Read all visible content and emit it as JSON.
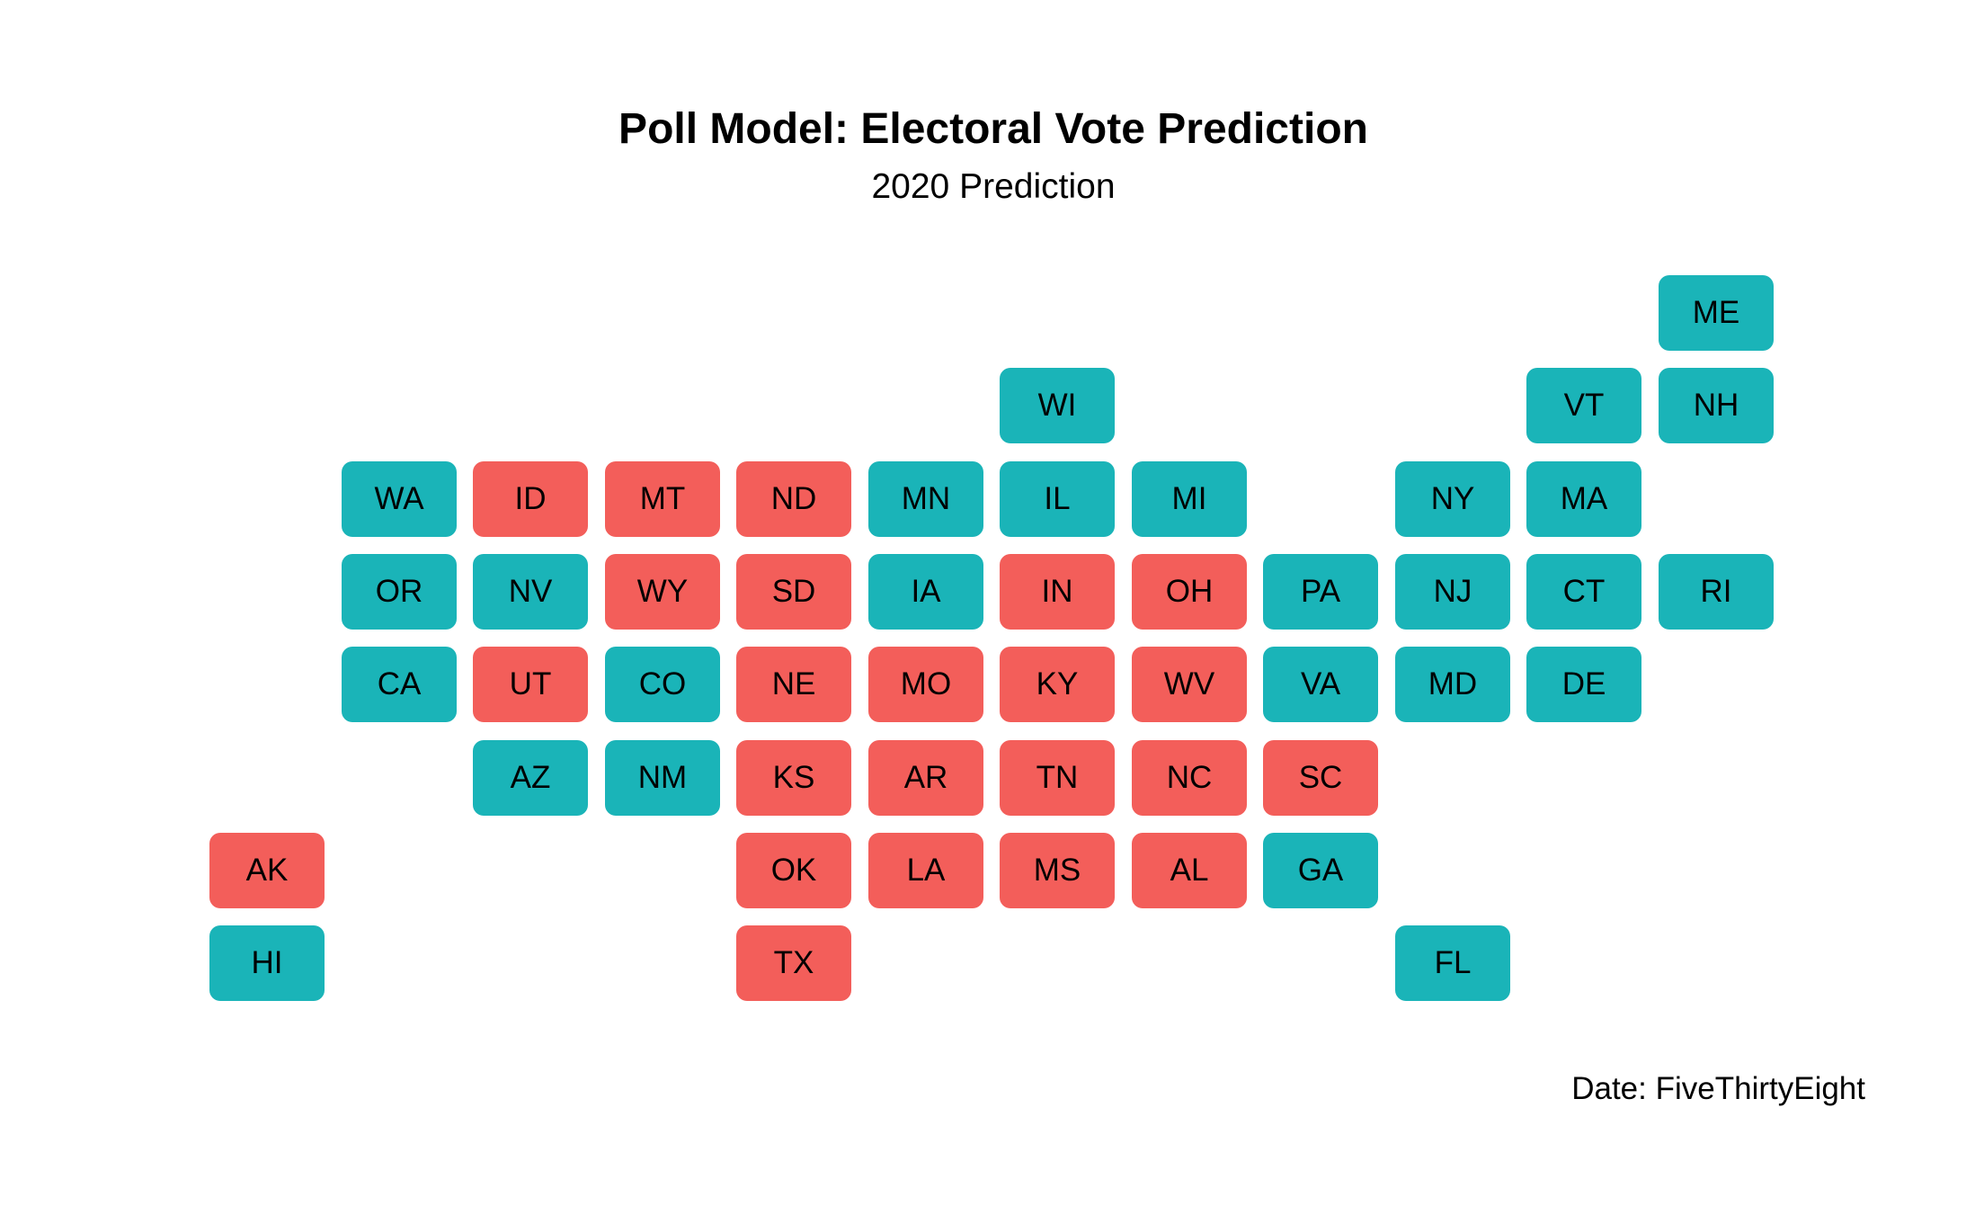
{
  "title": "Poll Model: Electoral Vote Prediction",
  "subtitle": "2020 Prediction",
  "caption": "Date: FiveThirtyEight",
  "colors": {
    "D": "#1AB4B8",
    "R": "#F35E5A"
  },
  "states": [
    {
      "abbr": "ME",
      "col": 11,
      "row": 0,
      "party": "D"
    },
    {
      "abbr": "WI",
      "col": 6,
      "row": 1,
      "party": "D"
    },
    {
      "abbr": "VT",
      "col": 10,
      "row": 1,
      "party": "D"
    },
    {
      "abbr": "NH",
      "col": 11,
      "row": 1,
      "party": "D"
    },
    {
      "abbr": "WA",
      "col": 1,
      "row": 2,
      "party": "D"
    },
    {
      "abbr": "ID",
      "col": 2,
      "row": 2,
      "party": "R"
    },
    {
      "abbr": "MT",
      "col": 3,
      "row": 2,
      "party": "R"
    },
    {
      "abbr": "ND",
      "col": 4,
      "row": 2,
      "party": "R"
    },
    {
      "abbr": "MN",
      "col": 5,
      "row": 2,
      "party": "D"
    },
    {
      "abbr": "IL",
      "col": 6,
      "row": 2,
      "party": "D"
    },
    {
      "abbr": "MI",
      "col": 7,
      "row": 2,
      "party": "D"
    },
    {
      "abbr": "NY",
      "col": 9,
      "row": 2,
      "party": "D"
    },
    {
      "abbr": "MA",
      "col": 10,
      "row": 2,
      "party": "D"
    },
    {
      "abbr": "OR",
      "col": 1,
      "row": 3,
      "party": "D"
    },
    {
      "abbr": "NV",
      "col": 2,
      "row": 3,
      "party": "D"
    },
    {
      "abbr": "WY",
      "col": 3,
      "row": 3,
      "party": "R"
    },
    {
      "abbr": "SD",
      "col": 4,
      "row": 3,
      "party": "R"
    },
    {
      "abbr": "IA",
      "col": 5,
      "row": 3,
      "party": "D"
    },
    {
      "abbr": "IN",
      "col": 6,
      "row": 3,
      "party": "R"
    },
    {
      "abbr": "OH",
      "col": 7,
      "row": 3,
      "party": "R"
    },
    {
      "abbr": "PA",
      "col": 8,
      "row": 3,
      "party": "D"
    },
    {
      "abbr": "NJ",
      "col": 9,
      "row": 3,
      "party": "D"
    },
    {
      "abbr": "CT",
      "col": 10,
      "row": 3,
      "party": "D"
    },
    {
      "abbr": "RI",
      "col": 11,
      "row": 3,
      "party": "D"
    },
    {
      "abbr": "CA",
      "col": 1,
      "row": 4,
      "party": "D"
    },
    {
      "abbr": "UT",
      "col": 2,
      "row": 4,
      "party": "R"
    },
    {
      "abbr": "CO",
      "col": 3,
      "row": 4,
      "party": "D"
    },
    {
      "abbr": "NE",
      "col": 4,
      "row": 4,
      "party": "R"
    },
    {
      "abbr": "MO",
      "col": 5,
      "row": 4,
      "party": "R"
    },
    {
      "abbr": "KY",
      "col": 6,
      "row": 4,
      "party": "R"
    },
    {
      "abbr": "WV",
      "col": 7,
      "row": 4,
      "party": "R"
    },
    {
      "abbr": "VA",
      "col": 8,
      "row": 4,
      "party": "D"
    },
    {
      "abbr": "MD",
      "col": 9,
      "row": 4,
      "party": "D"
    },
    {
      "abbr": "DE",
      "col": 10,
      "row": 4,
      "party": "D"
    },
    {
      "abbr": "AZ",
      "col": 2,
      "row": 5,
      "party": "D"
    },
    {
      "abbr": "NM",
      "col": 3,
      "row": 5,
      "party": "D"
    },
    {
      "abbr": "KS",
      "col": 4,
      "row": 5,
      "party": "R"
    },
    {
      "abbr": "AR",
      "col": 5,
      "row": 5,
      "party": "R"
    },
    {
      "abbr": "TN",
      "col": 6,
      "row": 5,
      "party": "R"
    },
    {
      "abbr": "NC",
      "col": 7,
      "row": 5,
      "party": "R"
    },
    {
      "abbr": "SC",
      "col": 8,
      "row": 5,
      "party": "R"
    },
    {
      "abbr": "AK",
      "col": 0,
      "row": 6,
      "party": "R"
    },
    {
      "abbr": "OK",
      "col": 4,
      "row": 6,
      "party": "R"
    },
    {
      "abbr": "LA",
      "col": 5,
      "row": 6,
      "party": "R"
    },
    {
      "abbr": "MS",
      "col": 6,
      "row": 6,
      "party": "R"
    },
    {
      "abbr": "AL",
      "col": 7,
      "row": 6,
      "party": "R"
    },
    {
      "abbr": "GA",
      "col": 8,
      "row": 6,
      "party": "D"
    },
    {
      "abbr": "HI",
      "col": 0,
      "row": 7,
      "party": "D"
    },
    {
      "abbr": "TX",
      "col": 4,
      "row": 7,
      "party": "R"
    },
    {
      "abbr": "FL",
      "col": 9,
      "row": 7,
      "party": "D"
    }
  ]
}
